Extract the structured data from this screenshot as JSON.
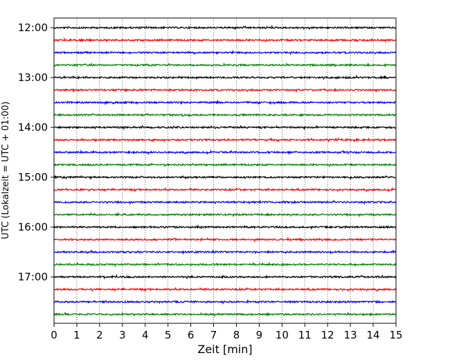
{
  "chart_data": {
    "type": "line",
    "title": "",
    "xlabel": "Zeit  [min]",
    "ylabel": "UTC (Lokalzeit = UTC + 01:00)",
    "xlim": [
      0,
      15
    ],
    "x_ticks": [
      0,
      1,
      2,
      3,
      4,
      5,
      6,
      7,
      8,
      9,
      10,
      11,
      12,
      13,
      14,
      15
    ],
    "y_tick_labels": [
      "12:00",
      "13:00",
      "14:00",
      "15:00",
      "16:00",
      "17:00"
    ],
    "trace_interval_min": 15,
    "grid": "vertical dotted lines at each minute",
    "trace_colors": [
      "#000000",
      "#ff0000",
      "#0000ff",
      "#008000"
    ],
    "series": [
      {
        "start": "12:00"
      },
      {
        "start": "12:15"
      },
      {
        "start": "12:30"
      },
      {
        "start": "12:45"
      },
      {
        "start": "13:00"
      },
      {
        "start": "13:15"
      },
      {
        "start": "13:30"
      },
      {
        "start": "13:45"
      },
      {
        "start": "14:00"
      },
      {
        "start": "14:15"
      },
      {
        "start": "14:30"
      },
      {
        "start": "14:45"
      },
      {
        "start": "15:00"
      },
      {
        "start": "15:15"
      },
      {
        "start": "15:30"
      },
      {
        "start": "15:45"
      },
      {
        "start": "16:00"
      },
      {
        "start": "16:15"
      },
      {
        "start": "16:30"
      },
      {
        "start": "16:45"
      },
      {
        "start": "17:00"
      },
      {
        "start": "17:15"
      },
      {
        "start": "17:30"
      },
      {
        "start": "17:45"
      }
    ]
  }
}
